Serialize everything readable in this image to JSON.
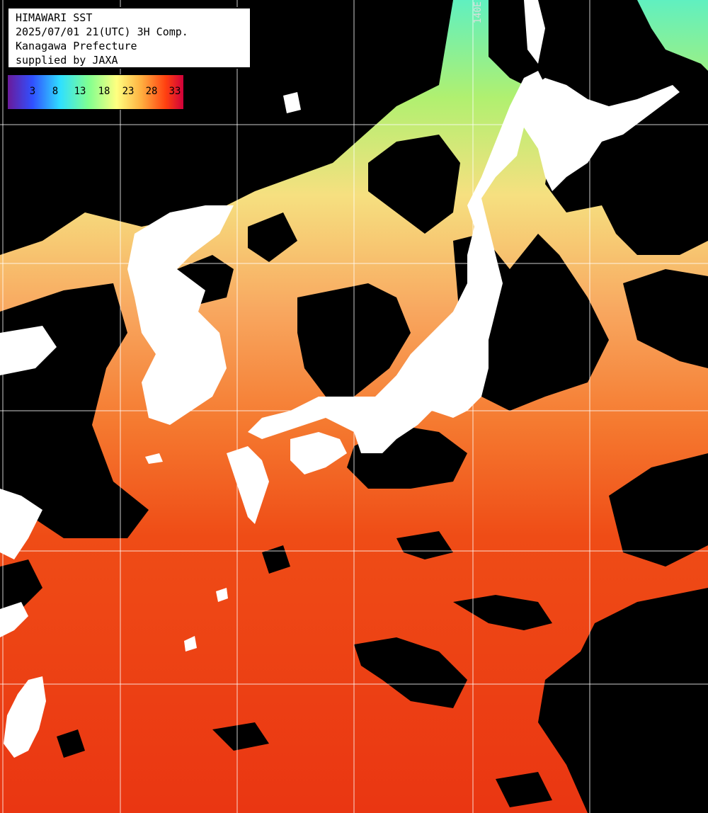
{
  "info": {
    "line1": "HIMAWARI SST",
    "line2": "2025/07/01 21(UTC) 3H Comp.",
    "line3": "Kanagawa Prefecture",
    "line4": "supplied by JAXA"
  },
  "legend": {
    "ticks": [
      "3",
      "8",
      "13",
      "18",
      "23",
      "28",
      "33"
    ],
    "colors": [
      "#6a1a9a",
      "#3050ff",
      "#30e0ff",
      "#80ff90",
      "#ffff80",
      "#ffb040",
      "#ff4010",
      "#d0003a"
    ]
  },
  "grid": {
    "longitude_label": "140E",
    "color": "#ffffff"
  },
  "colors": {
    "land": "#ffffff",
    "cloud": "#000000",
    "sea_warm": "#ee4a14",
    "sea_mild": "#f7b060",
    "sea_cool": "#90ee80"
  }
}
